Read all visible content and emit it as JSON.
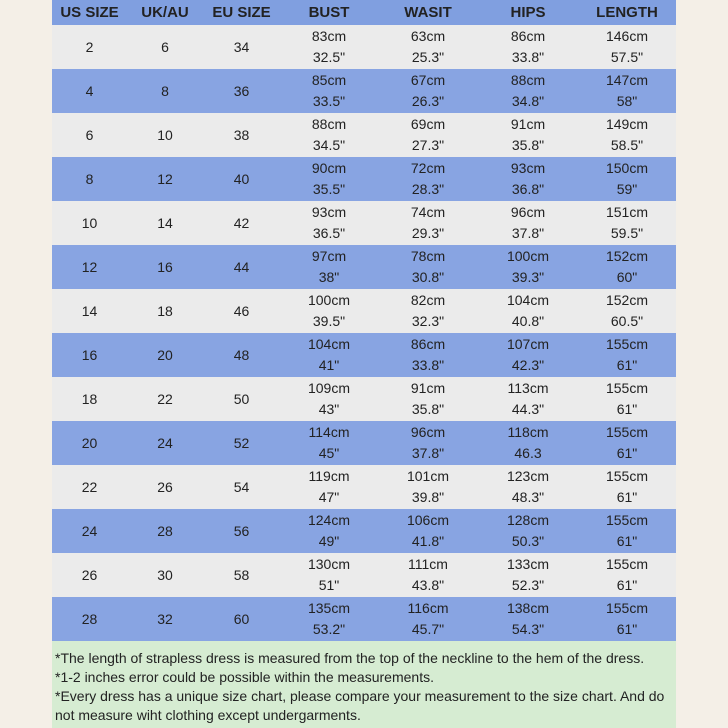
{
  "table": {
    "header": [
      "US SIZE",
      "UK/AU",
      "EU SIZE",
      "BUST",
      "WASIT",
      "HIPS",
      "LENGTH"
    ],
    "rows": [
      [
        "2",
        "6",
        "34",
        [
          "83cm",
          "32.5\""
        ],
        [
          "63cm",
          "25.3\""
        ],
        [
          "86cm",
          "33.8\""
        ],
        [
          "146cm",
          "57.5\""
        ]
      ],
      [
        "4",
        "8",
        "36",
        [
          "85cm",
          "33.5\""
        ],
        [
          "67cm",
          "26.3\""
        ],
        [
          "88cm",
          "34.8\""
        ],
        [
          "147cm",
          "58\""
        ]
      ],
      [
        "6",
        "10",
        "38",
        [
          "88cm",
          "34.5\""
        ],
        [
          "69cm",
          "27.3\""
        ],
        [
          "91cm",
          "35.8\""
        ],
        [
          "149cm",
          "58.5\""
        ]
      ],
      [
        "8",
        "12",
        "40",
        [
          "90cm",
          "35.5\""
        ],
        [
          "72cm",
          "28.3\""
        ],
        [
          "93cm",
          "36.8\""
        ],
        [
          "150cm",
          "59\""
        ]
      ],
      [
        "10",
        "14",
        "42",
        [
          "93cm",
          "36.5\""
        ],
        [
          "74cm",
          "29.3\""
        ],
        [
          "96cm",
          "37.8\""
        ],
        [
          "151cm",
          "59.5\""
        ]
      ],
      [
        "12",
        "16",
        "44",
        [
          "97cm",
          "38\""
        ],
        [
          "78cm",
          "30.8\""
        ],
        [
          "100cm",
          "39.3\""
        ],
        [
          "152cm",
          "60\""
        ]
      ],
      [
        "14",
        "18",
        "46",
        [
          "100cm",
          "39.5\""
        ],
        [
          "82cm",
          "32.3\""
        ],
        [
          "104cm",
          "40.8\""
        ],
        [
          "152cm",
          "60.5\""
        ]
      ],
      [
        "16",
        "20",
        "48",
        [
          "104cm",
          "41\""
        ],
        [
          "86cm",
          "33.8\""
        ],
        [
          "107cm",
          "42.3\""
        ],
        [
          "155cm",
          "61\""
        ]
      ],
      [
        "18",
        "22",
        "50",
        [
          "109cm",
          "43\""
        ],
        [
          "91cm",
          "35.8\""
        ],
        [
          "113cm",
          "44.3\""
        ],
        [
          "155cm",
          "61\""
        ]
      ],
      [
        "20",
        "24",
        "52",
        [
          "114cm",
          "45\""
        ],
        [
          "96cm",
          "37.8\""
        ],
        [
          "118cm",
          "46.3"
        ],
        [
          "155cm",
          "61\""
        ]
      ],
      [
        "22",
        "26",
        "54",
        [
          "119cm",
          "47\""
        ],
        [
          "101cm",
          "39.8\""
        ],
        [
          "123cm",
          "48.3\""
        ],
        [
          "155cm",
          "61\""
        ]
      ],
      [
        "24",
        "28",
        "56",
        [
          "124cm",
          "49\""
        ],
        [
          "106cm",
          "41.8\""
        ],
        [
          "128cm",
          "50.3\""
        ],
        [
          "155cm",
          "61\""
        ]
      ],
      [
        "26",
        "30",
        "58",
        [
          "130cm",
          "51\""
        ],
        [
          "111cm",
          "43.8\""
        ],
        [
          "133cm",
          "52.3\""
        ],
        [
          "155cm",
          "61\""
        ]
      ],
      [
        "28",
        "32",
        "60",
        [
          "135cm",
          "53.2\""
        ],
        [
          "116cm",
          "45.7\""
        ],
        [
          "138cm",
          "54.3\""
        ],
        [
          "155cm",
          "61\""
        ]
      ]
    ]
  },
  "notes": [
    "*The length of strapless dress is measured from the top of the neckline to the hem of the dress.",
    "*1-2 inches error could be possible within the measurements.",
    "*Every dress has a unique size chart, please compare your measurement to the size chart. And do not measure wiht clothing except undergarments."
  ]
}
